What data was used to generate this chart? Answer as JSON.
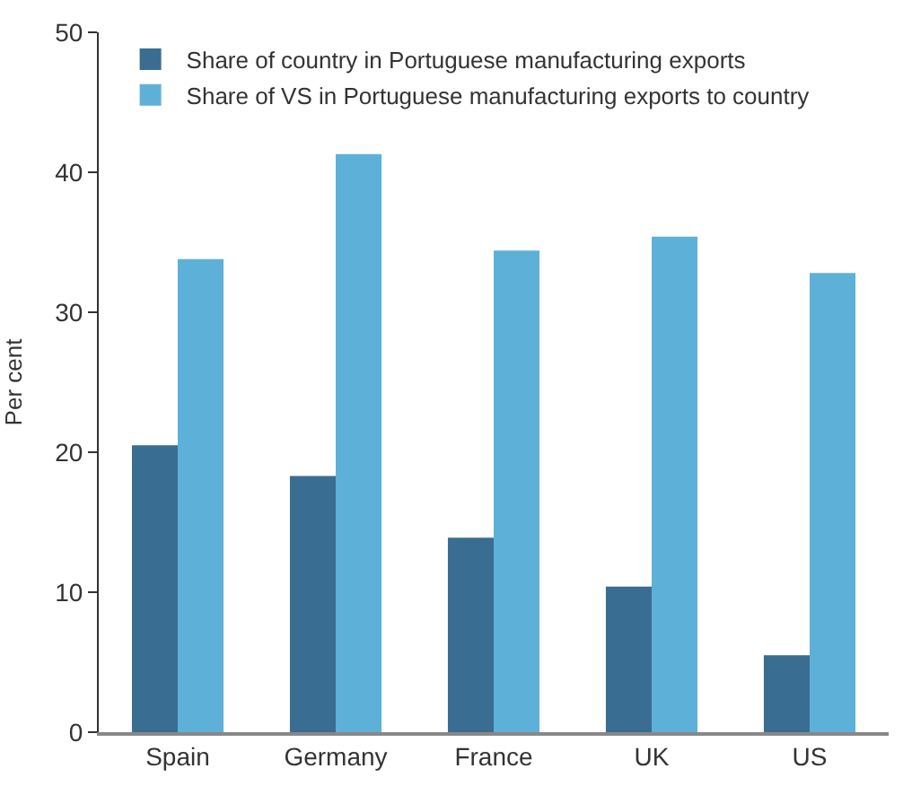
{
  "chart_data": {
    "type": "bar",
    "ylabel": "Per cent",
    "categories": [
      "Spain",
      "Germany",
      "France",
      "UK",
      "US"
    ],
    "series": [
      {
        "name": "Share of country in Portuguese manufacturing exports",
        "color": "#3a6d92",
        "values": [
          20.5,
          18.3,
          13.9,
          10.4,
          5.5
        ]
      },
      {
        "name": "Share of VS in Portuguese manufacturing exports to country",
        "color": "#5db1d8",
        "values": [
          33.8,
          41.3,
          34.4,
          35.4,
          32.8
        ]
      }
    ],
    "ylim": [
      0,
      50
    ],
    "yticks": [
      0,
      10,
      20,
      30,
      40,
      50
    ],
    "grid": false,
    "legend": "top left"
  }
}
